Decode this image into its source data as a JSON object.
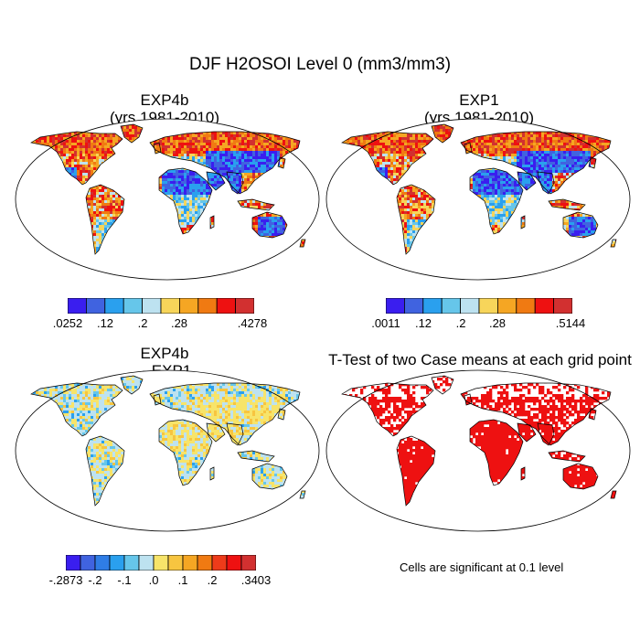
{
  "main_title": "DJF H2OSOI Level 0 (mm3/mm3)",
  "panels": [
    {
      "title_line1": "EXP4b",
      "title_line2": "(yrs 1981-2010)",
      "map_type": "soil-moisture",
      "colorbar": {
        "colors": [
          "#3a1eef",
          "#4063e0",
          "#2aa0ee",
          "#66c6ea",
          "#bde2f0",
          "#f7d55a",
          "#f5a623",
          "#f07a12",
          "#ee1111",
          "#d23030"
        ],
        "labels": [
          ".0252",
          ".12",
          ".2",
          ".28",
          ".4278"
        ],
        "label_bins": [
          0,
          2,
          4,
          6,
          10
        ]
      }
    },
    {
      "title_line1": "EXP1",
      "title_line2": "(yrs 1981-2010)",
      "map_type": "soil-moisture",
      "colorbar": {
        "colors": [
          "#3a1eef",
          "#4063e0",
          "#2aa0ee",
          "#66c6ea",
          "#bde2f0",
          "#f7d55a",
          "#f5a623",
          "#f07a12",
          "#ee1111",
          "#d23030"
        ],
        "labels": [
          ".0011",
          ".12",
          ".2",
          ".28",
          ".5144"
        ],
        "label_bins": [
          0,
          2,
          4,
          6,
          10
        ]
      }
    },
    {
      "title_line1": "EXP4b",
      "title_line2": " - EXP1",
      "map_type": "difference",
      "colorbar": {
        "colors": [
          "#3a1eef",
          "#4063e0",
          "#2f7de6",
          "#2aa0ee",
          "#66c6ea",
          "#bde2f0",
          "#f7e46a",
          "#f7c540",
          "#f5a623",
          "#f07a12",
          "#ee3b1a",
          "#ee1111",
          "#d23030"
        ],
        "labels": [
          "-.2873",
          "-.2",
          "-.1",
          ".0",
          ".1",
          ".2",
          ".3403"
        ],
        "label_bins": [
          0,
          2,
          4,
          6,
          8,
          10,
          13
        ]
      }
    },
    {
      "title_line1": "T-Test of two Case means at each grid point",
      "title_line2": "",
      "map_type": "significance",
      "note": "Cells are significant at 0.1 level"
    }
  ],
  "colors": {
    "ocean": "#ffffff",
    "land_outline": "#000000",
    "significant": "#ee1111"
  }
}
